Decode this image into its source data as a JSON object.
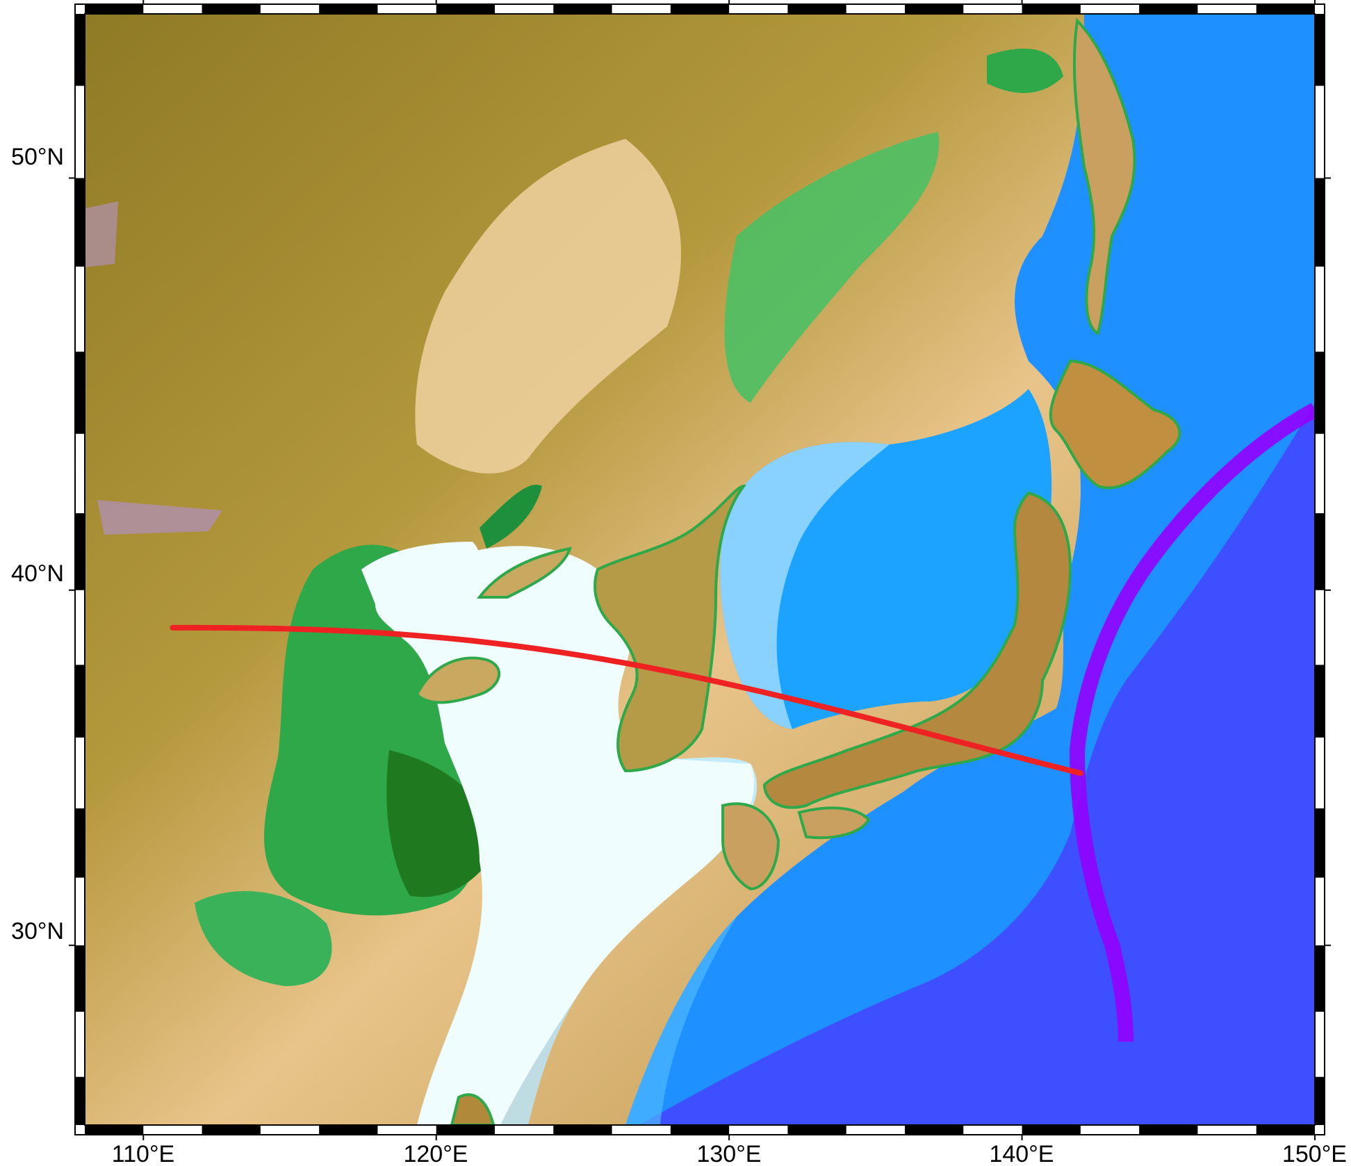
{
  "map": {
    "projection": "Mercator",
    "extent": {
      "lon": [
        108,
        150
      ],
      "lat": [
        24.5,
        53.5
      ]
    },
    "lat_axis": {
      "ticks": [
        {
          "value": 50,
          "label": "50°N"
        },
        {
          "value": 40,
          "label": "40°N"
        },
        {
          "value": 30,
          "label": "30°N"
        }
      ]
    },
    "lon_axis": {
      "ticks": [
        {
          "value": 110,
          "label": "110°E"
        },
        {
          "value": 120,
          "label": "120°E"
        },
        {
          "value": 130,
          "label": "130°E"
        },
        {
          "value": 140,
          "label": "140°E"
        },
        {
          "value": 150,
          "label": "150°E"
        }
      ]
    },
    "frame_style": "checkered black-and-white border",
    "basemap": "shaded topography and bathymetry",
    "profile_line": {
      "color": "#ee2222",
      "start": {
        "lon": 111.0,
        "lat": 39.0
      },
      "end": {
        "lon": 142.0,
        "lat": 35.0
      }
    },
    "colors": {
      "deep_trench": "#9400ff",
      "deep_ocean": "#3d4fff",
      "mid_ocean": "#1e90ff",
      "shelf": "#f0fdff",
      "lowland": "#2fa84a",
      "highland": "#a78331",
      "peaks": "#b090b0"
    }
  }
}
